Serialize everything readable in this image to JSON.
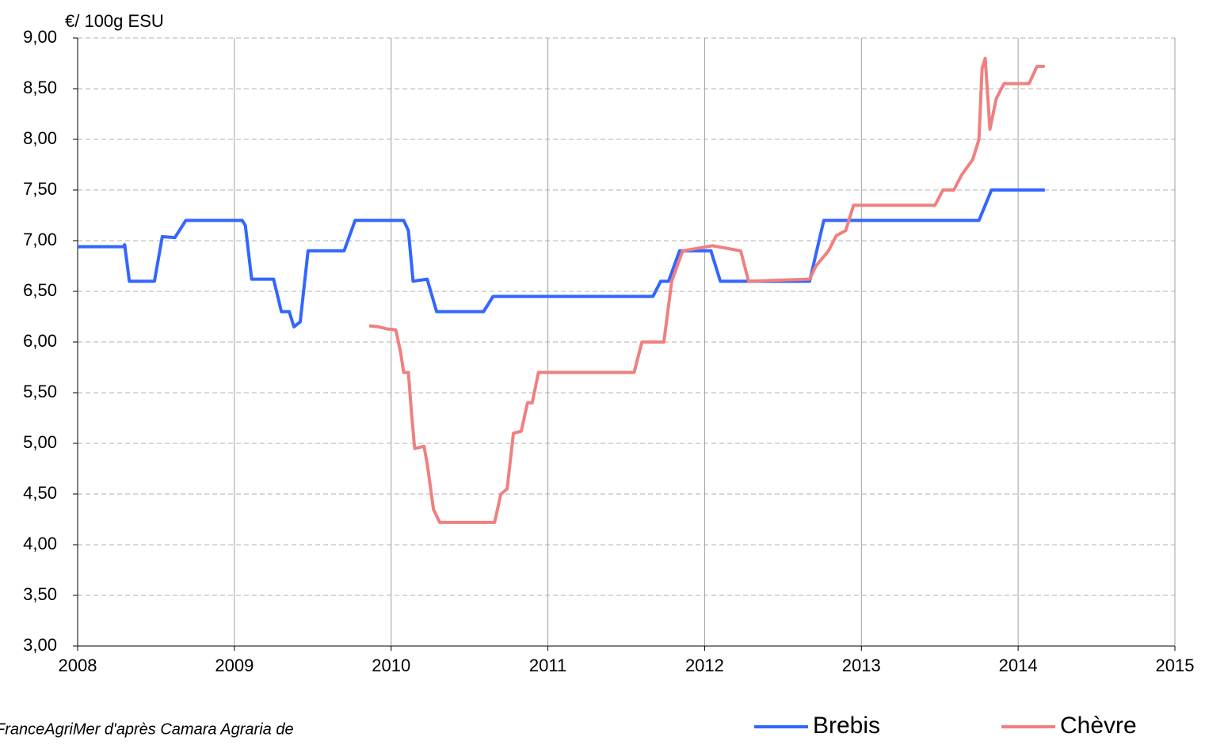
{
  "chart_data": {
    "type": "line",
    "y_axis_title": "€/ 100g ESU",
    "source": "FranceAgriMer d'après Camara Agraria de",
    "series": [
      {
        "name": "Brebis",
        "color": "#3366ff",
        "x": [
          2008.0,
          2008.29,
          2008.3,
          2008.33,
          2008.49,
          2008.54,
          2008.62,
          2008.69,
          2009.05,
          2009.07,
          2009.11,
          2009.25,
          2009.3,
          2009.35,
          2009.38,
          2009.42,
          2009.47,
          2009.5,
          2009.7,
          2009.77,
          2010.08,
          2010.11,
          2010.14,
          2010.23,
          2010.29,
          2010.59,
          2010.65,
          2011.67,
          2011.72,
          2011.77,
          2011.84,
          2012.04,
          2012.1,
          2012.25,
          2012.67,
          2012.76,
          2013.75,
          2013.83,
          2014.17
        ],
        "values": [
          6.94,
          6.94,
          6.96,
          6.6,
          6.6,
          7.04,
          7.03,
          7.2,
          7.2,
          7.15,
          6.62,
          6.62,
          6.3,
          6.3,
          6.15,
          6.2,
          6.9,
          6.9,
          6.9,
          7.2,
          7.2,
          7.1,
          6.6,
          6.62,
          6.3,
          6.3,
          6.45,
          6.45,
          6.6,
          6.6,
          6.9,
          6.9,
          6.6,
          6.6,
          6.6,
          7.2,
          7.2,
          7.5,
          7.5
        ]
      },
      {
        "name": "Chèvre",
        "color": "#f08080",
        "x": [
          2009.86,
          2009.92,
          2009.97,
          2010.03,
          2010.06,
          2010.08,
          2010.11,
          2010.13,
          2010.15,
          2010.21,
          2010.23,
          2010.27,
          2010.31,
          2010.66,
          2010.7,
          2010.74,
          2010.78,
          2010.83,
          2010.87,
          2010.9,
          2010.94,
          2011.55,
          2011.6,
          2011.74,
          2011.79,
          2011.86,
          2012.05,
          2012.23,
          2012.28,
          2012.67,
          2012.71,
          2012.79,
          2012.84,
          2012.9,
          2012.95,
          2013.47,
          2013.52,
          2013.59,
          2013.64,
          2013.71,
          2013.75,
          2013.77,
          2013.79,
          2013.82,
          2013.86,
          2013.91,
          2014.07,
          2014.12,
          2014.17
        ],
        "values": [
          6.16,
          6.15,
          6.13,
          6.12,
          5.9,
          5.7,
          5.7,
          5.3,
          4.95,
          4.97,
          4.8,
          4.35,
          4.22,
          4.22,
          4.5,
          4.55,
          5.1,
          5.12,
          5.4,
          5.4,
          5.7,
          5.7,
          6.0,
          6.0,
          6.6,
          6.9,
          6.95,
          6.9,
          6.6,
          6.62,
          6.75,
          6.9,
          7.05,
          7.1,
          7.35,
          7.35,
          7.5,
          7.5,
          7.65,
          7.8,
          8.0,
          8.7,
          8.8,
          8.1,
          8.4,
          8.55,
          8.55,
          8.72,
          8.72
        ]
      }
    ],
    "xlim": [
      2008,
      2015
    ],
    "xticks": [
      2008,
      2009,
      2010,
      2011,
      2012,
      2013,
      2014,
      2015
    ],
    "ylim": [
      3,
      9
    ],
    "yticks": [
      {
        "value": 3,
        "label": "3,00"
      },
      {
        "value": 3.5,
        "label": "3,50"
      },
      {
        "value": 4,
        "label": "4,00"
      },
      {
        "value": 4.5,
        "label": "4,50"
      },
      {
        "value": 5,
        "label": "5,00"
      },
      {
        "value": 5.5,
        "label": "5,50"
      },
      {
        "value": 6,
        "label": "6,00"
      },
      {
        "value": 6.5,
        "label": "6,50"
      },
      {
        "value": 7,
        "label": "7,00"
      },
      {
        "value": 7.5,
        "label": "7,50"
      },
      {
        "value": 8,
        "label": "8,00"
      },
      {
        "value": 8.5,
        "label": "8,50"
      },
      {
        "value": 9,
        "label": "9,00"
      }
    ],
    "grid": true
  }
}
